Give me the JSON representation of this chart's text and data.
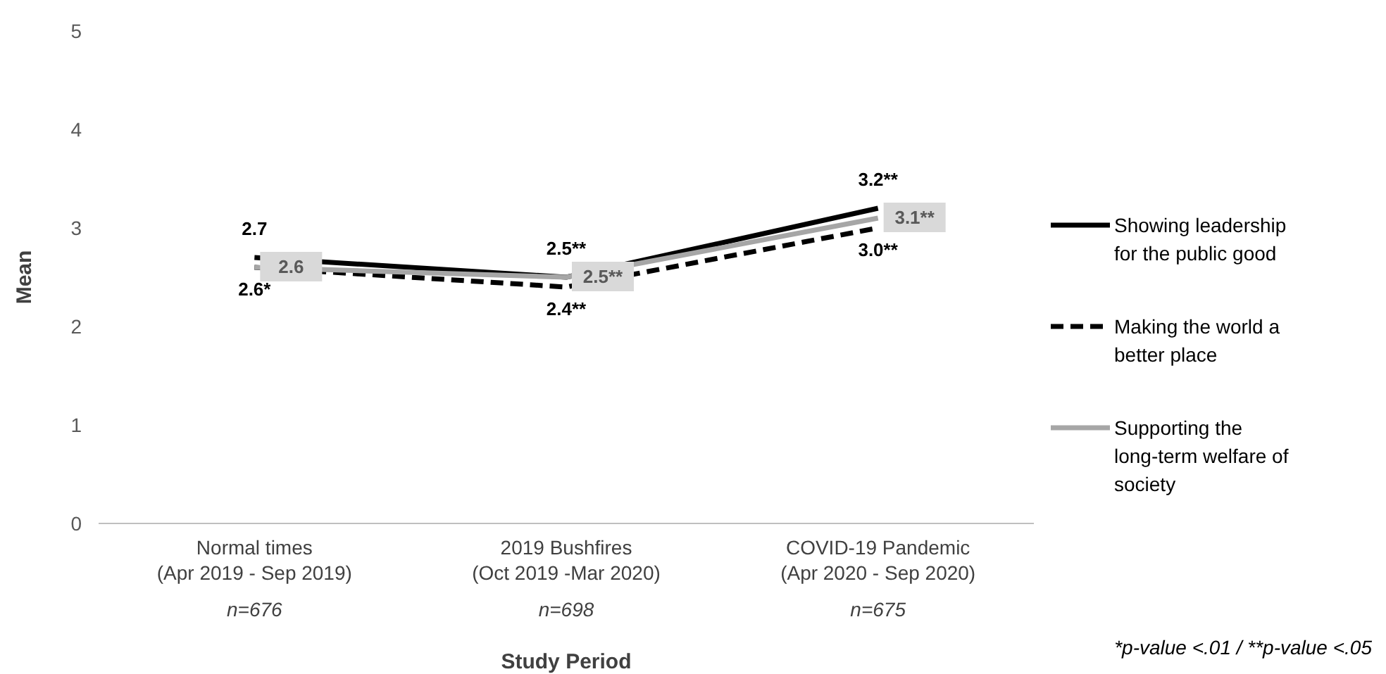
{
  "chart_data": {
    "type": "line",
    "xlabel": "Study Period",
    "ylabel": "Mean",
    "categories": [
      "Normal times\n(Apr 2019 - Sep 2019)\nn=676",
      "2019 Bushfires\n(Oct 2019 -Mar 2020)\nn=698",
      "COVID-19 Pandemic\n(Apr 2020 - Sep 2020)\nn=675"
    ],
    "series": [
      {
        "name": "Showing leadership for the public good",
        "color": "#000000",
        "line_style": "solid",
        "values": [
          2.7,
          2.5,
          3.2
        ],
        "value_labels": [
          "2.7",
          "2.5**",
          "3.2**"
        ]
      },
      {
        "name": "Making the world a better place",
        "color": "#000000",
        "line_style": "dashed",
        "values": [
          2.6,
          2.4,
          3.0
        ],
        "value_labels": [
          "2.6*",
          "2.4**",
          "3.0**"
        ]
      },
      {
        "name": "Supporting the long-term welfare of society",
        "color": "#a6a6a6",
        "line_style": "solid",
        "values": [
          2.6,
          2.5,
          3.1
        ],
        "value_labels": [
          "2.6",
          "2.5**",
          "3.1**"
        ]
      }
    ],
    "ylim": [
      0,
      5
    ],
    "yticks": [
      0,
      1,
      2,
      3,
      4,
      5
    ],
    "grid": false,
    "legend": "right",
    "marker": "none",
    "annotations": [
      "*p-value <.01 / **p-value <.05"
    ]
  }
}
